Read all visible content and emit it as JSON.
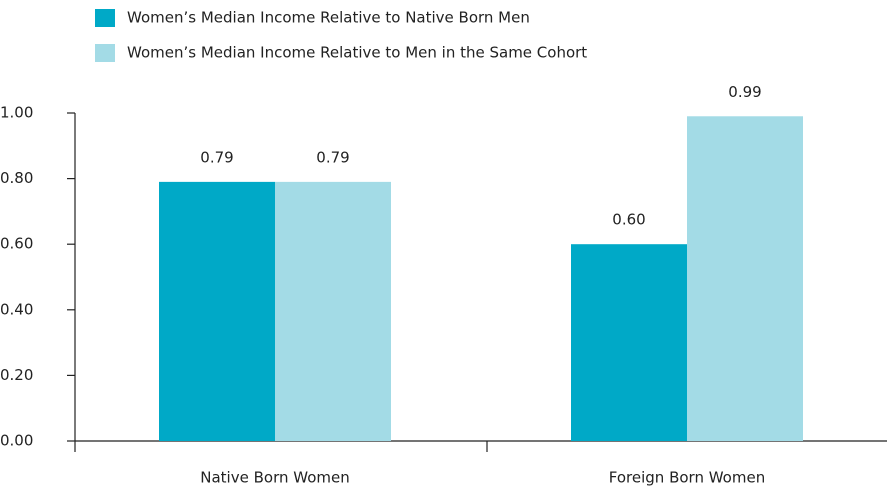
{
  "chart_data": {
    "type": "bar",
    "categories": [
      "Native Born Women",
      "Foreign Born Women"
    ],
    "series": [
      {
        "name": "Women’s Median Income Relative to Native Born Men",
        "color": "#00a9c7",
        "values": [
          0.79,
          0.6
        ],
        "value_labels": [
          "0.79",
          "0.60"
        ]
      },
      {
        "name": "Women’s Median Income Relative to Men in the Same Cohort",
        "color": "#a3dbe6",
        "values": [
          0.79,
          0.99
        ],
        "value_labels": [
          "0.79",
          "0.99"
        ]
      }
    ],
    "ylim": [
      0,
      1
    ],
    "yticks": [
      {
        "value": 0,
        "label": "0.00"
      },
      {
        "value": 0.2,
        "label": "0.20"
      },
      {
        "value": 0.4,
        "label": "0.40"
      },
      {
        "value": 0.6,
        "label": "0.60"
      },
      {
        "value": 0.8,
        "label": "0.80"
      },
      {
        "value": 1,
        "label": "1.00"
      }
    ],
    "legend": "top-left"
  }
}
